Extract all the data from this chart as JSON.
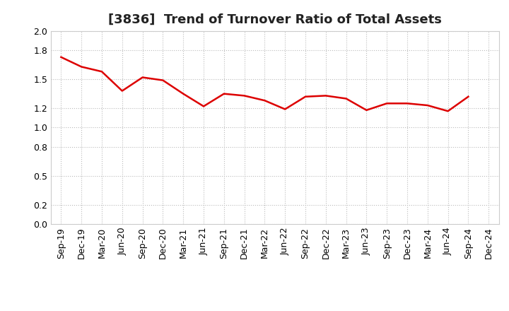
{
  "title": "[3836]  Trend of Turnover Ratio of Total Assets",
  "x_labels": [
    "Sep-19",
    "Dec-19",
    "Mar-20",
    "Jun-20",
    "Sep-20",
    "Dec-20",
    "Mar-21",
    "Jun-21",
    "Sep-21",
    "Dec-21",
    "Mar-22",
    "Jun-22",
    "Sep-22",
    "Dec-22",
    "Mar-23",
    "Jun-23",
    "Sep-23",
    "Dec-23",
    "Mar-24",
    "Jun-24",
    "Sep-24",
    "Dec-24"
  ],
  "values": [
    1.73,
    1.63,
    1.58,
    1.38,
    1.52,
    1.49,
    1.35,
    1.22,
    1.35,
    1.33,
    1.28,
    1.19,
    1.32,
    1.33,
    1.3,
    1.18,
    1.25,
    1.25,
    1.23,
    1.17,
    1.32,
    null
  ],
  "line_color": "#dd0000",
  "line_width": 1.8,
  "ylim": [
    0.0,
    2.0
  ],
  "yticks": [
    0.0,
    0.2,
    0.5,
    0.8,
    1.0,
    1.2,
    1.5,
    1.8,
    2.0
  ],
  "background_color": "#ffffff",
  "grid_color": "#bbbbbb",
  "title_fontsize": 13,
  "tick_fontsize": 9
}
